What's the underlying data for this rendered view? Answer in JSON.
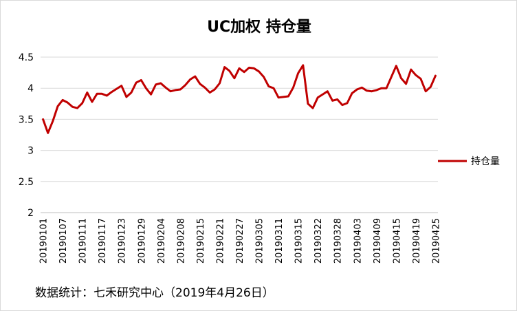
{
  "chart_data": {
    "type": "line",
    "title": "UC加权  持仓量",
    "xlabel": "",
    "ylabel": "",
    "ylim": [
      2,
      4.5
    ],
    "yticks": [
      "4.5",
      "4",
      "3.5",
      "3",
      "2.5",
      "2"
    ],
    "x_tick_labels": [
      "20190101",
      "20190107",
      "20190111",
      "20190117",
      "20190123",
      "20190129",
      "20190204",
      "20190208",
      "20190215",
      "20190221",
      "20190227",
      "20190305",
      "20190311",
      "20190315",
      "20190322",
      "20190328",
      "20190403",
      "20190409",
      "20190415",
      "20190419",
      "20190425"
    ],
    "series": [
      {
        "name": "持仓量",
        "color": "#c00000",
        "values": [
          3.5,
          3.28,
          3.47,
          3.71,
          3.81,
          3.77,
          3.7,
          3.68,
          3.76,
          3.93,
          3.78,
          3.91,
          3.91,
          3.88,
          3.94,
          3.99,
          4.04,
          3.86,
          3.93,
          4.09,
          4.13,
          4.0,
          3.9,
          4.06,
          4.08,
          4.01,
          3.95,
          3.97,
          3.98,
          4.05,
          4.14,
          4.19,
          4.07,
          4.01,
          3.93,
          3.98,
          4.08,
          4.34,
          4.28,
          4.16,
          4.32,
          4.26,
          4.33,
          4.32,
          4.27,
          4.18,
          4.03,
          4.0,
          3.85,
          3.86,
          3.87,
          4.01,
          4.24,
          4.37,
          3.75,
          3.68,
          3.85,
          3.9,
          3.95,
          3.8,
          3.82,
          3.73,
          3.76,
          3.92,
          3.98,
          4.01,
          3.96,
          3.95,
          3.97,
          4.0,
          4.0,
          4.18,
          4.36,
          4.16,
          4.07,
          4.3,
          4.21,
          4.15,
          3.95,
          4.02,
          4.2
        ]
      }
    ],
    "legend": "right"
  },
  "footer": "数据统计：七禾研究中心（2019年4月26日）"
}
